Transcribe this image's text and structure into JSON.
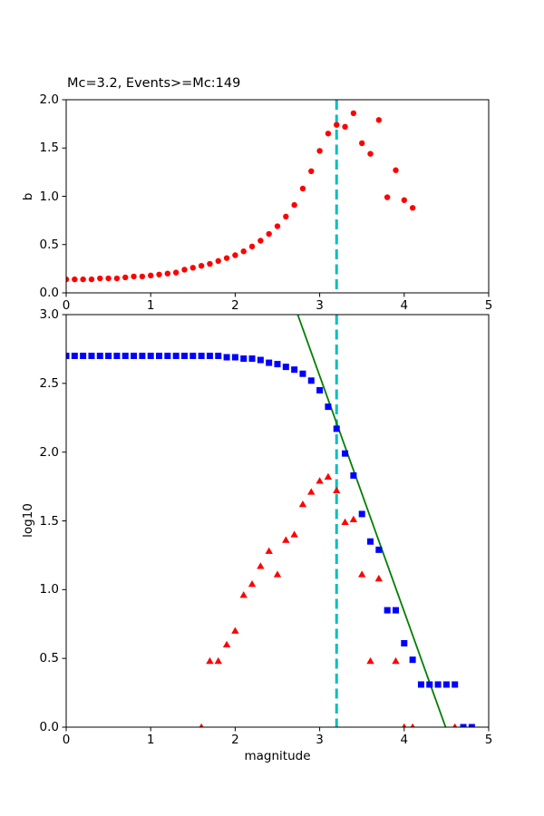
{
  "figure": {
    "background": "#ffffff",
    "frame_color": "#000000",
    "mc_line_color": "#00bfbf",
    "mc_value": 3.2
  },
  "chart_data": [
    {
      "type": "scatter",
      "title": "Mc=3.2, Events>=Mc:149",
      "xlabel": "",
      "ylabel": "b",
      "xlim": [
        0,
        5
      ],
      "ylim": [
        0,
        2
      ],
      "grid": false,
      "legend": "none",
      "xticks": [
        0,
        1,
        2,
        3,
        4,
        5
      ],
      "xtick_labels": [
        "0",
        "1",
        "2",
        "3",
        "4",
        "5"
      ],
      "yticks": [
        0.0,
        0.5,
        1.0,
        1.5,
        2.0
      ],
      "ytick_labels": [
        "0.0",
        "0.5",
        "1.0",
        "1.5",
        "2.0"
      ],
      "vline": {
        "x": 3.2,
        "color": "#00bfbf",
        "style": "dashed"
      },
      "series": [
        {
          "name": "b-value-vs-cutoff",
          "marker": "circle",
          "color": "#ff0000",
          "x": [
            0.0,
            0.1,
            0.2,
            0.3,
            0.4,
            0.5,
            0.6,
            0.7,
            0.8,
            0.9,
            1.0,
            1.1,
            1.2,
            1.3,
            1.4,
            1.5,
            1.6,
            1.7,
            1.8,
            1.9,
            2.0,
            2.1,
            2.2,
            2.3,
            2.4,
            2.5,
            2.6,
            2.7,
            2.8,
            2.9,
            3.0,
            3.1,
            3.2,
            3.3,
            3.4,
            3.5,
            3.6,
            3.7,
            3.8,
            3.9,
            4.0,
            4.1
          ],
          "y": [
            0.14,
            0.14,
            0.14,
            0.14,
            0.15,
            0.15,
            0.15,
            0.16,
            0.17,
            0.17,
            0.18,
            0.19,
            0.2,
            0.21,
            0.24,
            0.26,
            0.28,
            0.3,
            0.33,
            0.36,
            0.39,
            0.43,
            0.48,
            0.54,
            0.61,
            0.69,
            0.79,
            0.91,
            1.08,
            1.26,
            1.47,
            1.65,
            1.74,
            1.72,
            1.86,
            1.55,
            1.44,
            1.79,
            0.99,
            1.27,
            0.96,
            0.88
          ]
        }
      ]
    },
    {
      "type": "scatter",
      "title": "",
      "xlabel": "magnitude",
      "ylabel": "log10",
      "xlim": [
        0,
        5
      ],
      "ylim": [
        0,
        3
      ],
      "grid": false,
      "legend": "none",
      "xticks": [
        0,
        1,
        2,
        3,
        4,
        5
      ],
      "xtick_labels": [
        "0",
        "1",
        "2",
        "3",
        "4",
        "5"
      ],
      "yticks": [
        0.0,
        0.5,
        1.0,
        1.5,
        2.0,
        2.5,
        3.0
      ],
      "ytick_labels": [
        "0.0",
        "0.5",
        "1.0",
        "1.5",
        "2.0",
        "2.5",
        "3.0"
      ],
      "vline": {
        "x": 3.2,
        "color": "#00bfbf",
        "style": "dashed"
      },
      "series": [
        {
          "name": "gr-fit-line",
          "marker": "line",
          "color": "#008000",
          "x": [
            2.74,
            4.49
          ],
          "y": [
            3.0,
            0.0
          ]
        },
        {
          "name": "bin-counts",
          "marker": "triangle",
          "color": "#ff0000",
          "x": [
            1.6,
            1.7,
            1.8,
            1.9,
            2.0,
            2.1,
            2.2,
            2.3,
            2.4,
            2.5,
            2.6,
            2.7,
            2.8,
            2.9,
            3.0,
            3.1,
            3.2,
            3.3,
            3.4,
            3.5,
            3.6,
            3.7,
            3.9,
            4.0,
            4.1,
            4.6
          ],
          "y": [
            0.0,
            0.48,
            0.48,
            0.6,
            0.7,
            0.96,
            1.04,
            1.17,
            1.28,
            1.11,
            1.36,
            1.4,
            1.62,
            1.71,
            1.79,
            1.82,
            1.72,
            1.49,
            1.51,
            1.11,
            0.48,
            1.08,
            0.48,
            0.0,
            0.0,
            0.0
          ]
        },
        {
          "name": "cumulative-counts",
          "marker": "square",
          "color": "#0000ff",
          "x": [
            0.0,
            0.1,
            0.2,
            0.3,
            0.4,
            0.5,
            0.6,
            0.7,
            0.8,
            0.9,
            1.0,
            1.1,
            1.2,
            1.3,
            1.4,
            1.5,
            1.6,
            1.7,
            1.8,
            1.9,
            2.0,
            2.1,
            2.2,
            2.3,
            2.4,
            2.5,
            2.6,
            2.7,
            2.8,
            2.9,
            3.0,
            3.1,
            3.2,
            3.3,
            3.4,
            3.5,
            3.6,
            3.7,
            3.8,
            3.9,
            4.0,
            4.1,
            4.2,
            4.3,
            4.4,
            4.5,
            4.6,
            4.7,
            4.8
          ],
          "y": [
            2.7,
            2.7,
            2.7,
            2.7,
            2.7,
            2.7,
            2.7,
            2.7,
            2.7,
            2.7,
            2.7,
            2.7,
            2.7,
            2.7,
            2.7,
            2.7,
            2.7,
            2.7,
            2.7,
            2.69,
            2.69,
            2.68,
            2.68,
            2.67,
            2.65,
            2.64,
            2.62,
            2.6,
            2.57,
            2.52,
            2.45,
            2.33,
            2.17,
            1.99,
            1.83,
            1.55,
            1.35,
            1.29,
            0.85,
            0.85,
            0.61,
            0.49,
            0.31,
            0.31,
            0.31,
            0.31,
            0.31,
            0.0,
            0.0
          ]
        }
      ]
    }
  ]
}
